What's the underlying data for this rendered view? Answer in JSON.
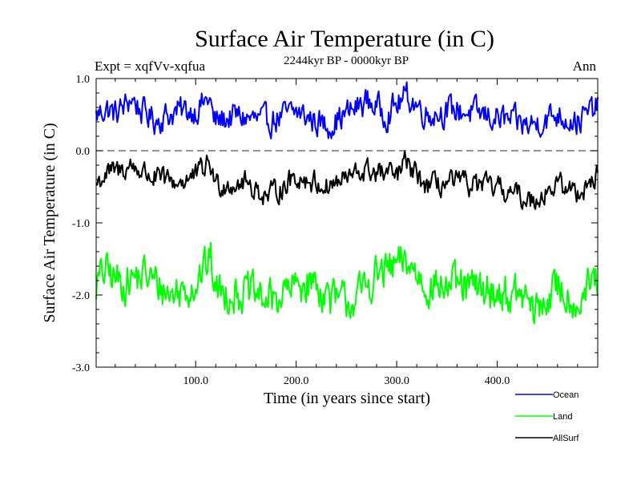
{
  "chart_data": {
    "type": "line",
    "title": "Surface Air Temperature (in C)",
    "subtitle": "2244kyr BP - 0000kyr BP",
    "experiment_label": "Expt = xqfVv-xqfua",
    "season_label": "Ann",
    "xlabel": "Time (in years since start)",
    "ylabel": "Surface Air Temperature (in C)",
    "xlim": [
      1,
      500
    ],
    "ylim": [
      -3.0,
      1.0
    ],
    "x_ticks": [
      100,
      200,
      300,
      400
    ],
    "x_tick_labels": [
      "100.0",
      "200.0",
      "300.0",
      "400.0"
    ],
    "y_ticks": [
      1.0,
      0.0,
      -1.0,
      -2.0,
      -3.0
    ],
    "y_tick_labels": [
      "1.0",
      "0.0",
      "-1.0",
      "-2.0",
      "-3.0"
    ],
    "reference_line": {
      "y": 0.0,
      "style": "dashed"
    },
    "legend_position": "bottom-right",
    "series": [
      {
        "name": "Ocean",
        "color": "#0000ff",
        "mean": 0.52,
        "amplitude": 0.17,
        "points": [
          [
            1,
            0.45
          ],
          [
            10,
            0.65
          ],
          [
            20,
            0.5
          ],
          [
            30,
            0.7
          ],
          [
            36,
            0.92
          ],
          [
            45,
            0.6
          ],
          [
            60,
            0.35
          ],
          [
            80,
            0.55
          ],
          [
            100,
            0.6
          ],
          [
            114,
            0.9
          ],
          [
            118,
            0.3
          ],
          [
            140,
            0.45
          ],
          [
            170,
            0.3
          ],
          [
            200,
            0.55
          ],
          [
            230,
            0.2
          ],
          [
            260,
            0.65
          ],
          [
            270,
            0.85
          ],
          [
            290,
            0.5
          ],
          [
            310,
            0.95
          ],
          [
            330,
            0.5
          ],
          [
            360,
            0.6
          ],
          [
            400,
            0.4
          ],
          [
            432,
            0.2
          ],
          [
            460,
            0.5
          ],
          [
            480,
            0.3
          ],
          [
            498,
            0.65
          ]
        ]
      },
      {
        "name": "Land",
        "color": "#00ff00",
        "mean": -1.87,
        "amplitude": 0.24,
        "points": [
          [
            1,
            -1.85
          ],
          [
            10,
            -1.5
          ],
          [
            25,
            -1.8
          ],
          [
            50,
            -1.6
          ],
          [
            75,
            -2.1
          ],
          [
            100,
            -1.8
          ],
          [
            115,
            -1.2
          ],
          [
            120,
            -2.0
          ],
          [
            150,
            -2.05
          ],
          [
            175,
            -2.25
          ],
          [
            200,
            -1.9
          ],
          [
            215,
            -1.75
          ],
          [
            240,
            -2.3
          ],
          [
            260,
            -2.2
          ],
          [
            280,
            -1.6
          ],
          [
            310,
            -1.3
          ],
          [
            330,
            -1.85
          ],
          [
            360,
            -1.9
          ],
          [
            400,
            -2.05
          ],
          [
            430,
            -2.2
          ],
          [
            436,
            -2.6
          ],
          [
            460,
            -1.9
          ],
          [
            480,
            -2.3
          ],
          [
            495,
            -1.8
          ]
        ]
      },
      {
        "name": "AllSurf",
        "color": "#000000",
        "mean": -0.43,
        "amplitude": 0.14,
        "points": [
          [
            1,
            -0.5
          ],
          [
            10,
            -0.25
          ],
          [
            25,
            -0.15
          ],
          [
            36,
            -0.02
          ],
          [
            60,
            -0.35
          ],
          [
            80,
            -0.45
          ],
          [
            100,
            -0.3
          ],
          [
            114,
            0.05
          ],
          [
            120,
            -0.5
          ],
          [
            150,
            -0.45
          ],
          [
            172,
            -0.82
          ],
          [
            200,
            -0.3
          ],
          [
            230,
            -0.55
          ],
          [
            270,
            -0.15
          ],
          [
            300,
            -0.3
          ],
          [
            308,
            0.05
          ],
          [
            330,
            -0.55
          ],
          [
            360,
            -0.45
          ],
          [
            400,
            -0.6
          ],
          [
            434,
            -0.9
          ],
          [
            460,
            -0.5
          ],
          [
            480,
            -0.7
          ],
          [
            498,
            -0.3
          ]
        ]
      }
    ]
  }
}
